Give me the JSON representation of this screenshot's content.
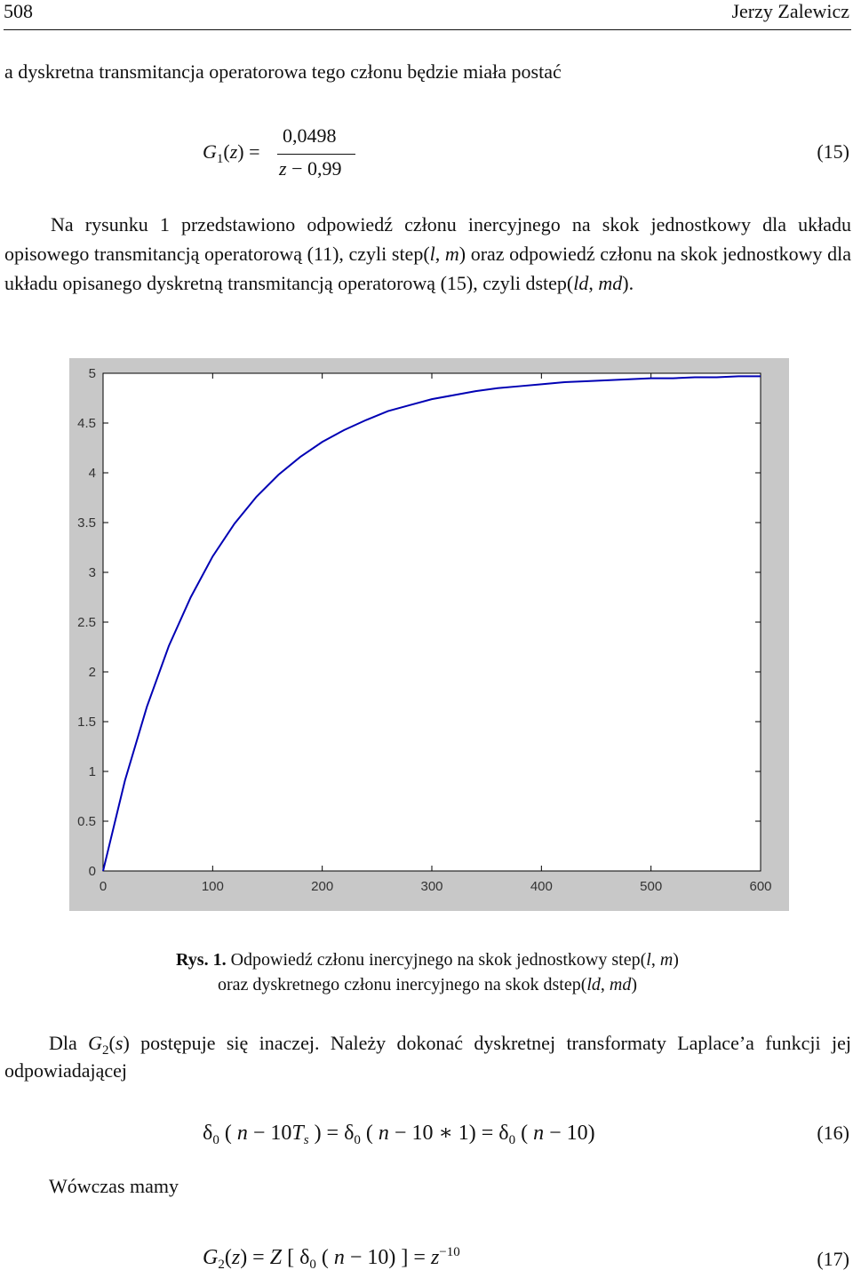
{
  "header": {
    "page_number": "508",
    "author": "Jerzy Zalewicz"
  },
  "paragraphs": [
    [
      "a dyskretna transmitancja operatorowa tego członu będzie miała postać"
    ],
    [
      "Na rysunku 1 przedstawiono odpowiedź członu inercyjnego  na skok jednostkowy dla układu opisowego transmitancją operatorową (11), czyli step(",
      "l",
      ", ",
      "m",
      ") oraz odpowiedź członu na skok jednostkowy dla układu opisanego dyskretną transmitancją operatorową (15), czyli dstep(",
      "ld",
      ", ",
      "md",
      ")."
    ],
    [
      "Dla ",
      "G",
      "2",
      "(",
      "s",
      ") postępuje się inaczej. Należy dokonać dyskretnej transformaty Laplace’a funkcji jej odpowiadającej"
    ],
    [
      "Wówczas mamy"
    ]
  ],
  "equations": [
    {
      "parts": [
        "G",
        "1",
        "(",
        "z",
        ") =",
        "0,0498",
        "z",
        " − 0,99"
      ],
      "number": "(15)"
    },
    {
      "parts": [
        "δ",
        "0",
        " ( ",
        "n",
        " − 10",
        "T",
        "s",
        " ) = δ",
        "0",
        " ( ",
        "n",
        " − 10 ∗ 1) = δ",
        "0",
        " ( ",
        "n",
        " − 10)"
      ],
      "number": "(16)"
    },
    {
      "parts": [
        "G",
        "2",
        "(",
        "z",
        ") = ",
        "Z",
        " [ δ",
        "0",
        " ( ",
        "n",
        " − 10) ] = ",
        "z",
        "−10"
      ],
      "number": "(17)"
    }
  ],
  "figure": {
    "caption": [
      "Rys. 1.",
      " Odpowiedź członu inercyjnego na skok jednostkowy step(",
      "l",
      ", ",
      "m",
      ")",
      "oraz dyskretnego członu inercyjnego na skok dstep(",
      "ld",
      ", ",
      "md",
      ")"
    ],
    "chart_data": {
      "type": "line",
      "x": [
        0,
        20,
        40,
        60,
        80,
        100,
        120,
        140,
        160,
        180,
        200,
        220,
        240,
        260,
        280,
        300,
        320,
        340,
        360,
        380,
        400,
        420,
        440,
        460,
        480,
        500,
        520,
        540,
        560,
        580,
        600
      ],
      "values": [
        0,
        0.91,
        1.65,
        2.26,
        2.75,
        3.16,
        3.49,
        3.76,
        3.98,
        4.16,
        4.31,
        4.43,
        4.53,
        4.62,
        4.68,
        4.74,
        4.78,
        4.82,
        4.85,
        4.87,
        4.89,
        4.91,
        4.92,
        4.93,
        4.94,
        4.95,
        4.95,
        4.96,
        4.96,
        4.97,
        4.97
      ],
      "color": "#0000b4",
      "xlim": [
        0,
        600
      ],
      "ylim": [
        0,
        5
      ],
      "xticks": [
        0,
        100,
        200,
        300,
        400,
        500,
        600
      ],
      "yticks": [
        0,
        0.5,
        1,
        1.5,
        2,
        2.5,
        3,
        3.5,
        4,
        4.5,
        5
      ]
    }
  }
}
